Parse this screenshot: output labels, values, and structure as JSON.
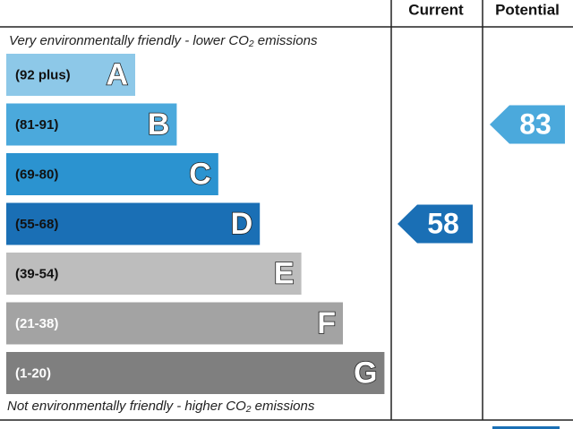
{
  "header": {
    "current": "Current",
    "potential": "Potential"
  },
  "top_note": "Very environmentally friendly - lower CO₂ emissions",
  "bottom_note": "Not environmentally friendly - higher CO₂ emissions",
  "bands": [
    {
      "range": "(92 plus)",
      "letter": "A",
      "color": "#8dc8e8"
    },
    {
      "range": "(81-91)",
      "letter": "B",
      "color": "#4ba9dc"
    },
    {
      "range": "(69-80)",
      "letter": "C",
      "color": "#2b93d0"
    },
    {
      "range": "(55-68)",
      "letter": "D",
      "color": "#1a6fb5"
    },
    {
      "range": "(39-54)",
      "letter": "E",
      "color": "#bdbdbd"
    },
    {
      "range": "(21-38)",
      "letter": "F",
      "color": "#a3a3a3"
    },
    {
      "range": "(1-20)",
      "letter": "G",
      "color": "#7f7f7f"
    }
  ],
  "current": 58,
  "potential": 83
}
